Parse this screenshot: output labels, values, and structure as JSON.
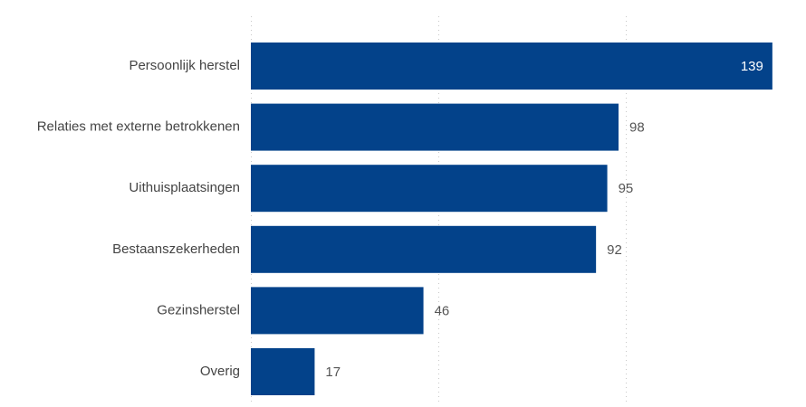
{
  "chart_data": {
    "type": "bar",
    "orientation": "horizontal",
    "categories": [
      "Persoonlijk herstel",
      "Relaties met externe betrokkenen",
      "Uithuisplaatsingen",
      "Bestaanszekerheden",
      "Gezinsherstel",
      "Overig"
    ],
    "values": [
      139,
      98,
      95,
      92,
      46,
      17
    ],
    "title": "",
    "xlabel": "",
    "ylabel": "",
    "xlim": [
      0,
      140
    ],
    "gridlines_at": [
      0,
      50,
      100
    ],
    "grid": true,
    "legend": "none",
    "data_labels": true,
    "colors": {
      "bar": "#03428A",
      "label_inside": "#ffffff",
      "label_outside": "#555555",
      "category_text": "#444444",
      "grid": "#c8c8c8"
    }
  }
}
